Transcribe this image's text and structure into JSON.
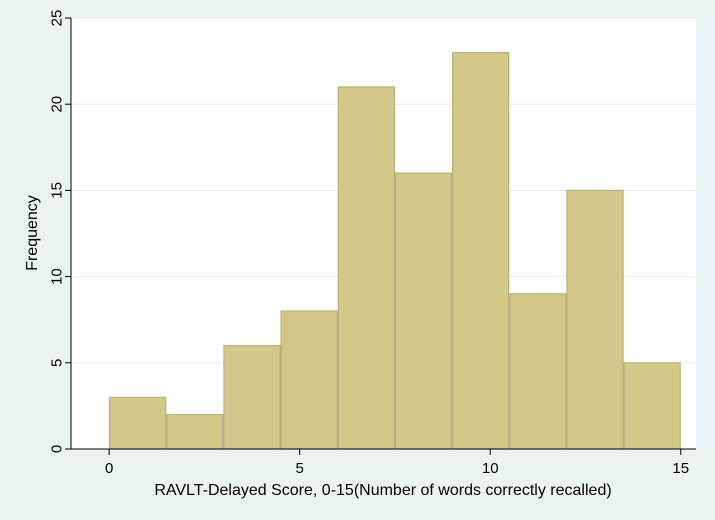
{
  "chart_data": {
    "type": "bar",
    "subtype": "histogram",
    "bin_edges": [
      0,
      1.5,
      3,
      4.5,
      6,
      7.5,
      9,
      10.5,
      12,
      13.5,
      15
    ],
    "values": [
      3,
      2,
      6,
      8,
      21,
      16,
      23,
      9,
      15,
      5
    ],
    "xlabel": "RAVLT-Delayed Score, 0-15(Number of words correctly recalled)",
    "ylabel": "Frequency",
    "xlim": [
      -1,
      15.4
    ],
    "ylim": [
      0,
      25
    ],
    "xticks": [
      0,
      5,
      10,
      15
    ],
    "yticks": [
      0,
      5,
      10,
      15,
      20,
      25
    ],
    "grid": "horizontal",
    "legend": "none"
  },
  "colors": {
    "page_background": "#eaf2f3",
    "plot_background": "#ffffff",
    "bar_fill": "#d2c88a",
    "bar_edge": "#b9b07a",
    "grid": "#e6edee",
    "axis": "#000000"
  }
}
